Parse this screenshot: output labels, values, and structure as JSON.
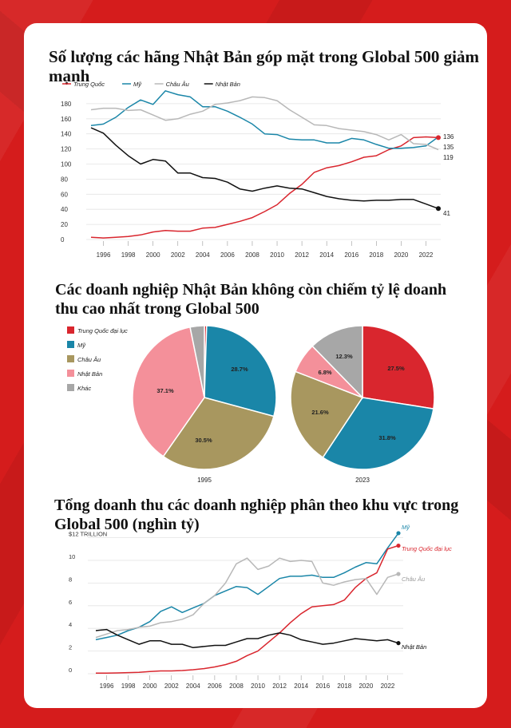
{
  "titles": {
    "chart1": "Số lượng các hãng Nhật Bản góp mặt trong Global 500 giảm mạnh",
    "chart2": "Các doanh nghiệp Nhật Bản không còn chiếm tỷ lệ doanh thu cao nhất trong Global 500",
    "chart3": "Tổng doanh thu các doanh nghiệp phân theo khu vực trong Global 500 (nghìn tỷ)"
  },
  "colors": {
    "china": "#d9262e",
    "us": "#1a86a8",
    "europe": "#b8b8b8",
    "japan": "#111111",
    "japan_pie": "#f4909a",
    "europe_pie": "#a8975f",
    "other": "#a7a7a7"
  },
  "chart_data": [
    {
      "type": "line",
      "x": [
        1995,
        1996,
        1997,
        1998,
        1999,
        2000,
        2001,
        2002,
        2003,
        2004,
        2005,
        2006,
        2007,
        2008,
        2009,
        2010,
        2011,
        2012,
        2013,
        2014,
        2015,
        2016,
        2017,
        2018,
        2019,
        2020,
        2021,
        2022,
        2023
      ],
      "x_ticks": [
        1996,
        1998,
        2000,
        2002,
        2004,
        2006,
        2008,
        2010,
        2012,
        2014,
        2016,
        2018,
        2020,
        2022
      ],
      "y_ticks": [
        0,
        20,
        40,
        60,
        80,
        100,
        120,
        140,
        160,
        180
      ],
      "ylim": [
        0,
        200
      ],
      "series": [
        {
          "name": "Trung Quốc",
          "color": "#d9262e",
          "values": [
            3,
            2,
            3,
            4,
            6,
            10,
            12,
            11,
            11,
            15,
            16,
            20,
            24,
            29,
            37,
            46,
            61,
            73,
            89,
            95,
            98,
            103,
            109,
            111,
            119,
            124,
            135,
            136,
            135
          ]
        },
        {
          "name": "Mỹ",
          "color": "#1a86a8",
          "values": [
            151,
            153,
            162,
            175,
            185,
            179,
            197,
            192,
            189,
            176,
            176,
            170,
            162,
            153,
            140,
            139,
            133,
            132,
            132,
            128,
            128,
            134,
            132,
            126,
            121,
            121,
            122,
            124,
            136
          ]
        },
        {
          "name": "Châu Âu",
          "color": "#b8b8b8",
          "values": [
            172,
            174,
            174,
            171,
            172,
            165,
            158,
            160,
            166,
            170,
            179,
            181,
            184,
            189,
            188,
            184,
            172,
            162,
            152,
            151,
            147,
            145,
            143,
            139,
            132,
            139,
            127,
            126,
            119
          ]
        },
        {
          "name": "Nhật Bản",
          "color": "#111111",
          "values": [
            148,
            141,
            125,
            111,
            100,
            106,
            104,
            88,
            88,
            82,
            81,
            76,
            67,
            64,
            68,
            71,
            68,
            67,
            62,
            57,
            54,
            52,
            51,
            52,
            52,
            53,
            53,
            47,
            41
          ]
        }
      ],
      "end_labels": [
        "136",
        "135",
        "119",
        "41"
      ]
    },
    {
      "type": "pie",
      "legend": [
        "Trung Quốc đại lục",
        "Mỹ",
        "Châu Âu",
        "Nhật Bản",
        "Khác"
      ],
      "pies": [
        {
          "label": "1995",
          "values": [
            0.5,
            28.7,
            30.5,
            37.1,
            3.2
          ],
          "value_labels": [
            "",
            "28.7%",
            "30.5%",
            "37.1%",
            ""
          ]
        },
        {
          "label": "2023",
          "values": [
            27.5,
            31.8,
            21.6,
            6.8,
            12.3
          ],
          "value_labels": [
            "27.5%",
            "31.8%",
            "21.6%",
            "6.8%",
            "12.3%"
          ]
        }
      ]
    },
    {
      "type": "line",
      "x": [
        1995,
        1996,
        1997,
        1998,
        1999,
        2000,
        2001,
        2002,
        2003,
        2004,
        2005,
        2006,
        2007,
        2008,
        2009,
        2010,
        2011,
        2012,
        2013,
        2014,
        2015,
        2016,
        2017,
        2018,
        2019,
        2020,
        2021,
        2022,
        2023
      ],
      "x_ticks": [
        1996,
        1998,
        2000,
        2002,
        2004,
        2006,
        2008,
        2010,
        2012,
        2014,
        2016,
        2018,
        2020,
        2022
      ],
      "y_ticks": [
        0,
        2,
        4,
        6,
        8,
        10
      ],
      "y_tick_labels": [
        "0",
        "2",
        "4",
        "6",
        "8",
        "10"
      ],
      "y_top_label": "$12 TRILLION",
      "ylim": [
        0,
        12
      ],
      "series": [
        {
          "name": "Mỹ",
          "color": "#1a86a8",
          "values": [
            3.0,
            3.2,
            3.4,
            3.8,
            4.1,
            4.6,
            5.5,
            5.9,
            5.4,
            5.8,
            6.2,
            6.9,
            7.3,
            7.7,
            7.6,
            7.0,
            7.7,
            8.4,
            8.6,
            8.6,
            8.7,
            8.5,
            8.5,
            8.9,
            9.4,
            9.8,
            9.7,
            11.1,
            12.4
          ]
        },
        {
          "name": "Trung Quốc đại lục",
          "color": "#d9262e",
          "values": [
            0.05,
            0.05,
            0.07,
            0.1,
            0.13,
            0.2,
            0.25,
            0.25,
            0.28,
            0.35,
            0.45,
            0.6,
            0.8,
            1.1,
            1.6,
            2.0,
            2.8,
            3.6,
            4.5,
            5.3,
            5.9,
            6.0,
            6.1,
            6.5,
            7.6,
            8.4,
            8.9,
            11.0,
            11.3
          ]
        },
        {
          "name": "Châu Âu",
          "color": "#b8b8b8",
          "values": [
            3.2,
            3.5,
            3.8,
            3.9,
            4.1,
            4.2,
            4.5,
            4.6,
            4.8,
            5.2,
            6.2,
            6.9,
            8.0,
            9.7,
            10.2,
            9.2,
            9.5,
            10.2,
            9.9,
            10.0,
            9.9,
            8.0,
            7.8,
            8.1,
            8.3,
            8.4,
            7.0,
            8.5,
            8.8
          ]
        },
        {
          "name": "Nhật Bản",
          "color": "#111111",
          "values": [
            3.8,
            3.9,
            3.4,
            3.0,
            2.6,
            2.9,
            2.9,
            2.6,
            2.6,
            2.3,
            2.4,
            2.5,
            2.5,
            2.8,
            3.1,
            3.1,
            3.4,
            3.6,
            3.4,
            3.0,
            2.8,
            2.6,
            2.7,
            2.9,
            3.1,
            3.0,
            2.9,
            3.0,
            2.7
          ]
        }
      ]
    }
  ]
}
